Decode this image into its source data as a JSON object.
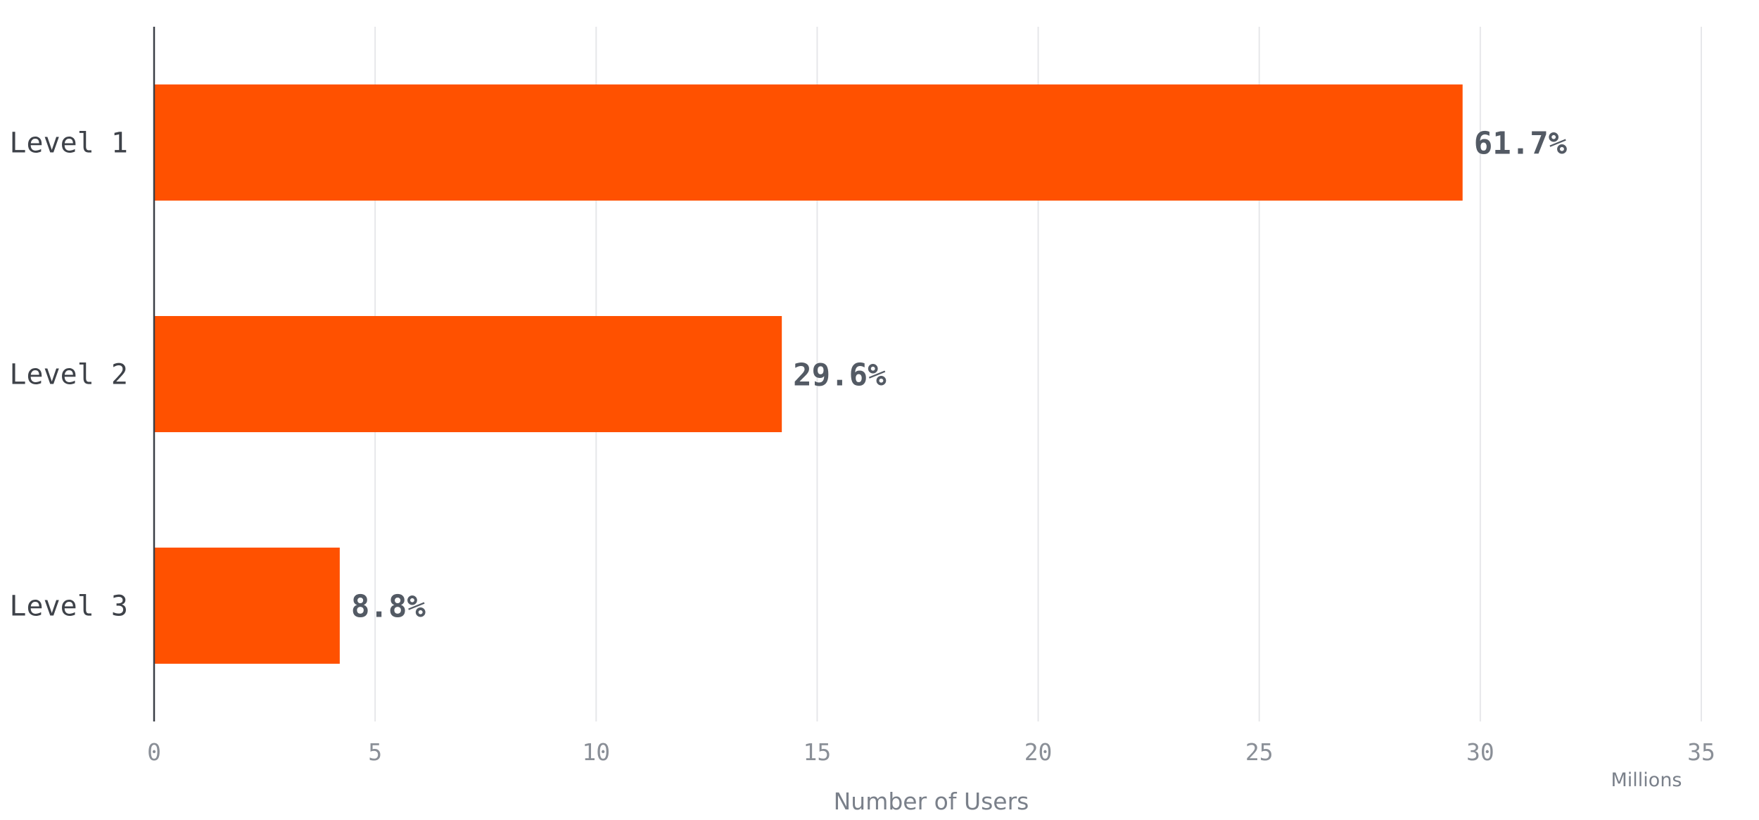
{
  "chart_data": {
    "type": "bar",
    "orientation": "horizontal",
    "categories": [
      "Level 1",
      "Level 2",
      "Level 3"
    ],
    "values": [
      29.6,
      14.2,
      4.2
    ],
    "data_labels": [
      "61.7%",
      "29.6%",
      "8.8%"
    ],
    "xlabel": "Number of Users",
    "x_unit": "Millions",
    "xlim": [
      0,
      35
    ],
    "x_ticks": [
      0,
      5,
      10,
      15,
      20,
      25,
      30,
      35
    ],
    "x_tick_labels": [
      "0",
      "5",
      "10",
      "15",
      "20",
      "25",
      "30",
      "35"
    ],
    "grid": "vertical",
    "legend": "none",
    "colors": {
      "bar": "#ff5100"
    }
  }
}
